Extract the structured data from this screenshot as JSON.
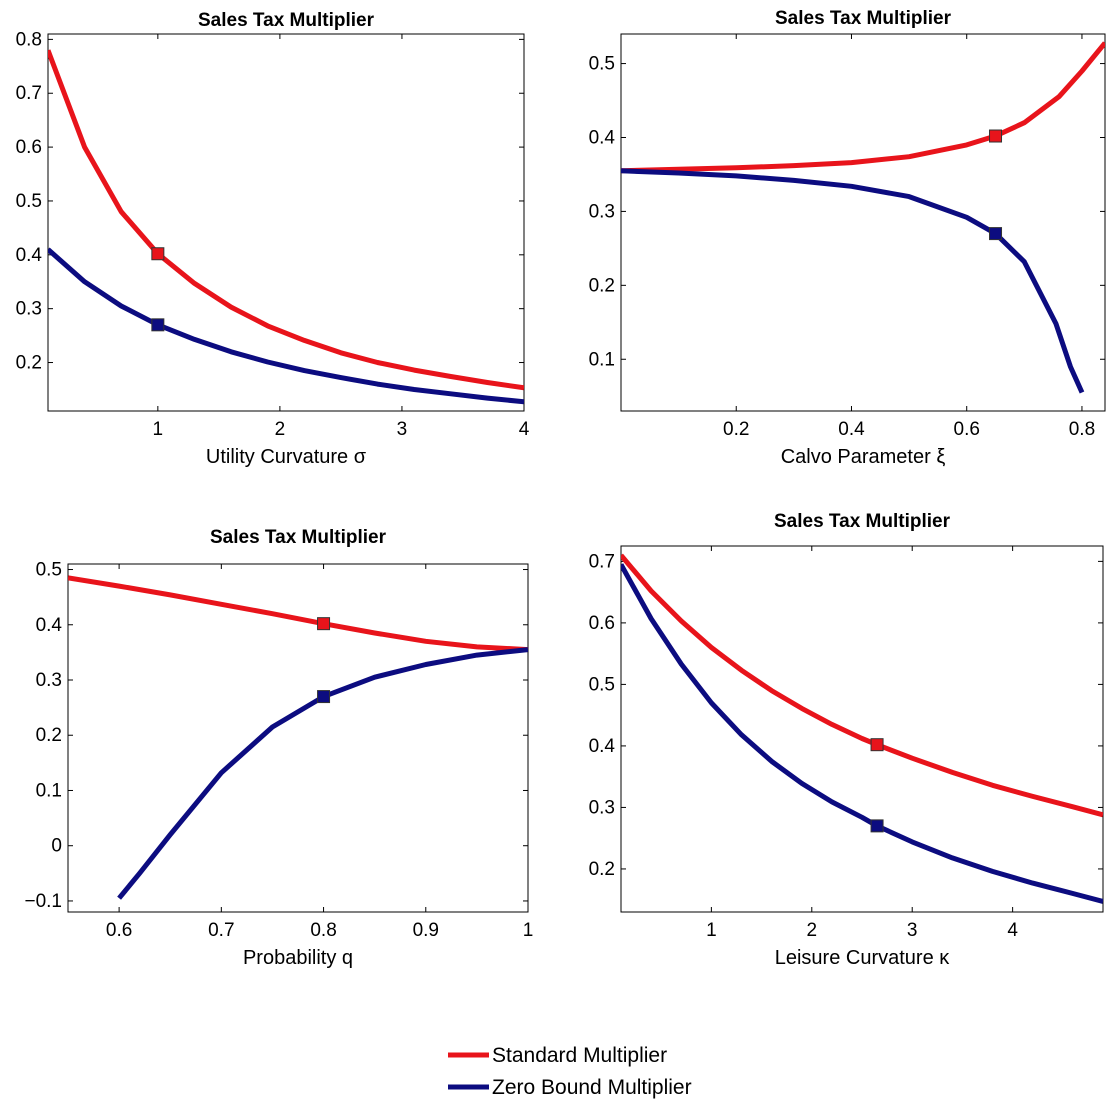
{
  "colors": {
    "standard": "#e8141b",
    "zero_bound": "#0c0c80",
    "background": "#ffffff",
    "axes": "#000000"
  },
  "legend": {
    "placement": "bottom-center",
    "items": [
      {
        "label": "Standard Multiplier",
        "color": "#e8141b"
      },
      {
        "label": "Zero Bound Multiplier",
        "color": "#0c0c80"
      }
    ]
  },
  "chart_data": [
    {
      "type": "line",
      "title": "Sales Tax Multiplier",
      "xlabel": "Utility Curvature σ",
      "ylabel": "",
      "xlim": [
        0.1,
        4
      ],
      "ylim": [
        0.11,
        0.81
      ],
      "xticks": [
        1,
        2,
        3,
        4
      ],
      "yticks": [
        0.2,
        0.3,
        0.4,
        0.5,
        0.6,
        0.7,
        0.8
      ],
      "grid": false,
      "series": [
        {
          "name": "Standard Multiplier",
          "x": [
            0.1,
            0.4,
            0.7,
            1.0,
            1.3,
            1.6,
            1.9,
            2.2,
            2.5,
            2.8,
            3.1,
            3.4,
            3.7,
            4.0
          ],
          "y": [
            0.78,
            0.6,
            0.48,
            0.402,
            0.347,
            0.303,
            0.268,
            0.241,
            0.218,
            0.2,
            0.186,
            0.174,
            0.163,
            0.153
          ]
        },
        {
          "name": "Zero Bound Multiplier",
          "x": [
            0.1,
            0.4,
            0.7,
            1.0,
            1.3,
            1.6,
            1.9,
            2.2,
            2.5,
            2.8,
            3.1,
            3.4,
            3.7,
            4.0
          ],
          "y": [
            0.41,
            0.35,
            0.305,
            0.27,
            0.243,
            0.22,
            0.201,
            0.185,
            0.172,
            0.16,
            0.15,
            0.142,
            0.134,
            0.127
          ]
        }
      ],
      "markers": [
        {
          "series": 0,
          "x": 1.0,
          "y": 0.402
        },
        {
          "series": 1,
          "x": 1.0,
          "y": 0.27
        }
      ]
    },
    {
      "type": "line",
      "title": "Sales Tax Multiplier",
      "xlabel": "Calvo Parameter ξ",
      "ylabel": "",
      "xlim": [
        0.0,
        0.84
      ],
      "ylim": [
        0.03,
        0.54
      ],
      "xticks": [
        0.2,
        0.4,
        0.6,
        0.8
      ],
      "yticks": [
        0.1,
        0.2,
        0.3,
        0.4,
        0.5
      ],
      "grid": false,
      "series": [
        {
          "name": "Standard Multiplier",
          "x": [
            0.0,
            0.1,
            0.2,
            0.3,
            0.4,
            0.5,
            0.6,
            0.65,
            0.7,
            0.76,
            0.8,
            0.84
          ],
          "y": [
            0.355,
            0.357,
            0.359,
            0.362,
            0.366,
            0.374,
            0.39,
            0.402,
            0.42,
            0.455,
            0.49,
            0.528
          ]
        },
        {
          "name": "Zero Bound Multiplier",
          "x": [
            0.0,
            0.1,
            0.2,
            0.3,
            0.4,
            0.5,
            0.6,
            0.65,
            0.7,
            0.755,
            0.78,
            0.8
          ],
          "y": [
            0.355,
            0.352,
            0.348,
            0.342,
            0.334,
            0.32,
            0.292,
            0.27,
            0.232,
            0.148,
            0.09,
            0.055
          ]
        }
      ],
      "markers": [
        {
          "series": 0,
          "x": 0.65,
          "y": 0.402
        },
        {
          "series": 1,
          "x": 0.65,
          "y": 0.27
        }
      ]
    },
    {
      "type": "line",
      "title": "Sales Tax Multiplier",
      "xlabel": "Probability q",
      "ylabel": "",
      "xlim": [
        0.55,
        1.0
      ],
      "ylim": [
        -0.12,
        0.51
      ],
      "xticks": [
        0.6,
        0.7,
        0.8,
        0.9,
        1
      ],
      "yticks": [
        -0.1,
        0,
        0.1,
        0.2,
        0.3,
        0.4,
        0.5
      ],
      "grid": false,
      "series": [
        {
          "name": "Standard Multiplier",
          "x": [
            0.55,
            0.6,
            0.65,
            0.7,
            0.75,
            0.8,
            0.85,
            0.9,
            0.95,
            1.0
          ],
          "y": [
            0.485,
            0.47,
            0.454,
            0.437,
            0.42,
            0.402,
            0.385,
            0.37,
            0.36,
            0.355
          ]
        },
        {
          "name": "Zero Bound Multiplier",
          "x": [
            0.6,
            0.62,
            0.65,
            0.7,
            0.75,
            0.8,
            0.85,
            0.9,
            0.95,
            1.0
          ],
          "y": [
            -0.095,
            -0.05,
            0.02,
            0.132,
            0.215,
            0.27,
            0.305,
            0.328,
            0.345,
            0.355
          ]
        }
      ],
      "markers": [
        {
          "series": 0,
          "x": 0.8,
          "y": 0.402
        },
        {
          "series": 1,
          "x": 0.8,
          "y": 0.27
        }
      ]
    },
    {
      "type": "line",
      "title": "Sales Tax Multiplier",
      "xlabel": "Leisure Curvature κ",
      "ylabel": "",
      "xlim": [
        0.1,
        4.9
      ],
      "ylim": [
        0.13,
        0.725
      ],
      "xticks": [
        1,
        2,
        3,
        4
      ],
      "yticks": [
        0.2,
        0.3,
        0.4,
        0.5,
        0.6,
        0.7
      ],
      "grid": false,
      "series": [
        {
          "name": "Standard Multiplier",
          "x": [
            0.1,
            0.4,
            0.7,
            1.0,
            1.3,
            1.6,
            1.9,
            2.2,
            2.5,
            2.65,
            3.0,
            3.4,
            3.8,
            4.2,
            4.6,
            4.9
          ],
          "y": [
            0.71,
            0.652,
            0.603,
            0.56,
            0.523,
            0.49,
            0.461,
            0.435,
            0.412,
            0.402,
            0.38,
            0.357,
            0.336,
            0.318,
            0.301,
            0.288
          ]
        },
        {
          "name": "Zero Bound Multiplier",
          "x": [
            0.1,
            0.4,
            0.7,
            1.0,
            1.3,
            1.6,
            1.9,
            2.2,
            2.5,
            2.65,
            3.0,
            3.4,
            3.8,
            4.2,
            4.6,
            4.9
          ],
          "y": [
            0.695,
            0.607,
            0.533,
            0.47,
            0.418,
            0.375,
            0.339,
            0.309,
            0.284,
            0.27,
            0.244,
            0.218,
            0.196,
            0.177,
            0.16,
            0.147
          ]
        }
      ],
      "markers": [
        {
          "series": 0,
          "x": 2.65,
          "y": 0.402
        },
        {
          "series": 1,
          "x": 2.65,
          "y": 0.27
        }
      ]
    }
  ]
}
